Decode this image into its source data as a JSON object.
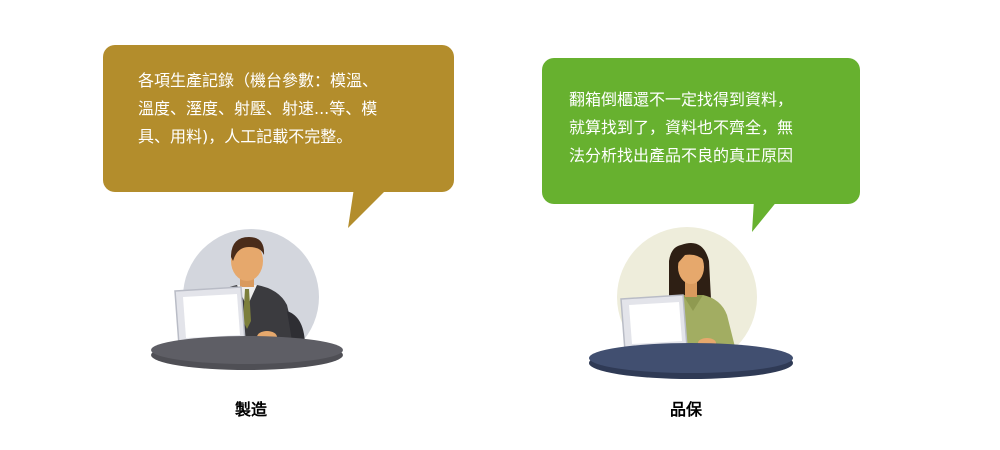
{
  "colors": {
    "left_bubble": "#b38d2c",
    "right_bubble": "#67b12f",
    "left_backdrop": "#d3d6dd",
    "right_backdrop": "#eeeddb",
    "left_table": "#4f4f55",
    "right_table": "#414f70",
    "skin": "#e6a86c",
    "laptop": "#e3e4ea"
  },
  "left": {
    "bubble_text": "各項生產記錄（機台參數：模溫、\n溫度、溼度、射壓、射速...等、模\n具、用料)，人工記載不完整。",
    "label": "製造",
    "figure_icon": "male-worker-at-laptop-icon"
  },
  "right": {
    "bubble_text": "翻箱倒櫃還不一定找得到資料，\n就算找到了，資料也不齊全，無\n法分析找出產品不良的真正原因",
    "label": "品保",
    "figure_icon": "female-worker-at-laptop-icon"
  }
}
